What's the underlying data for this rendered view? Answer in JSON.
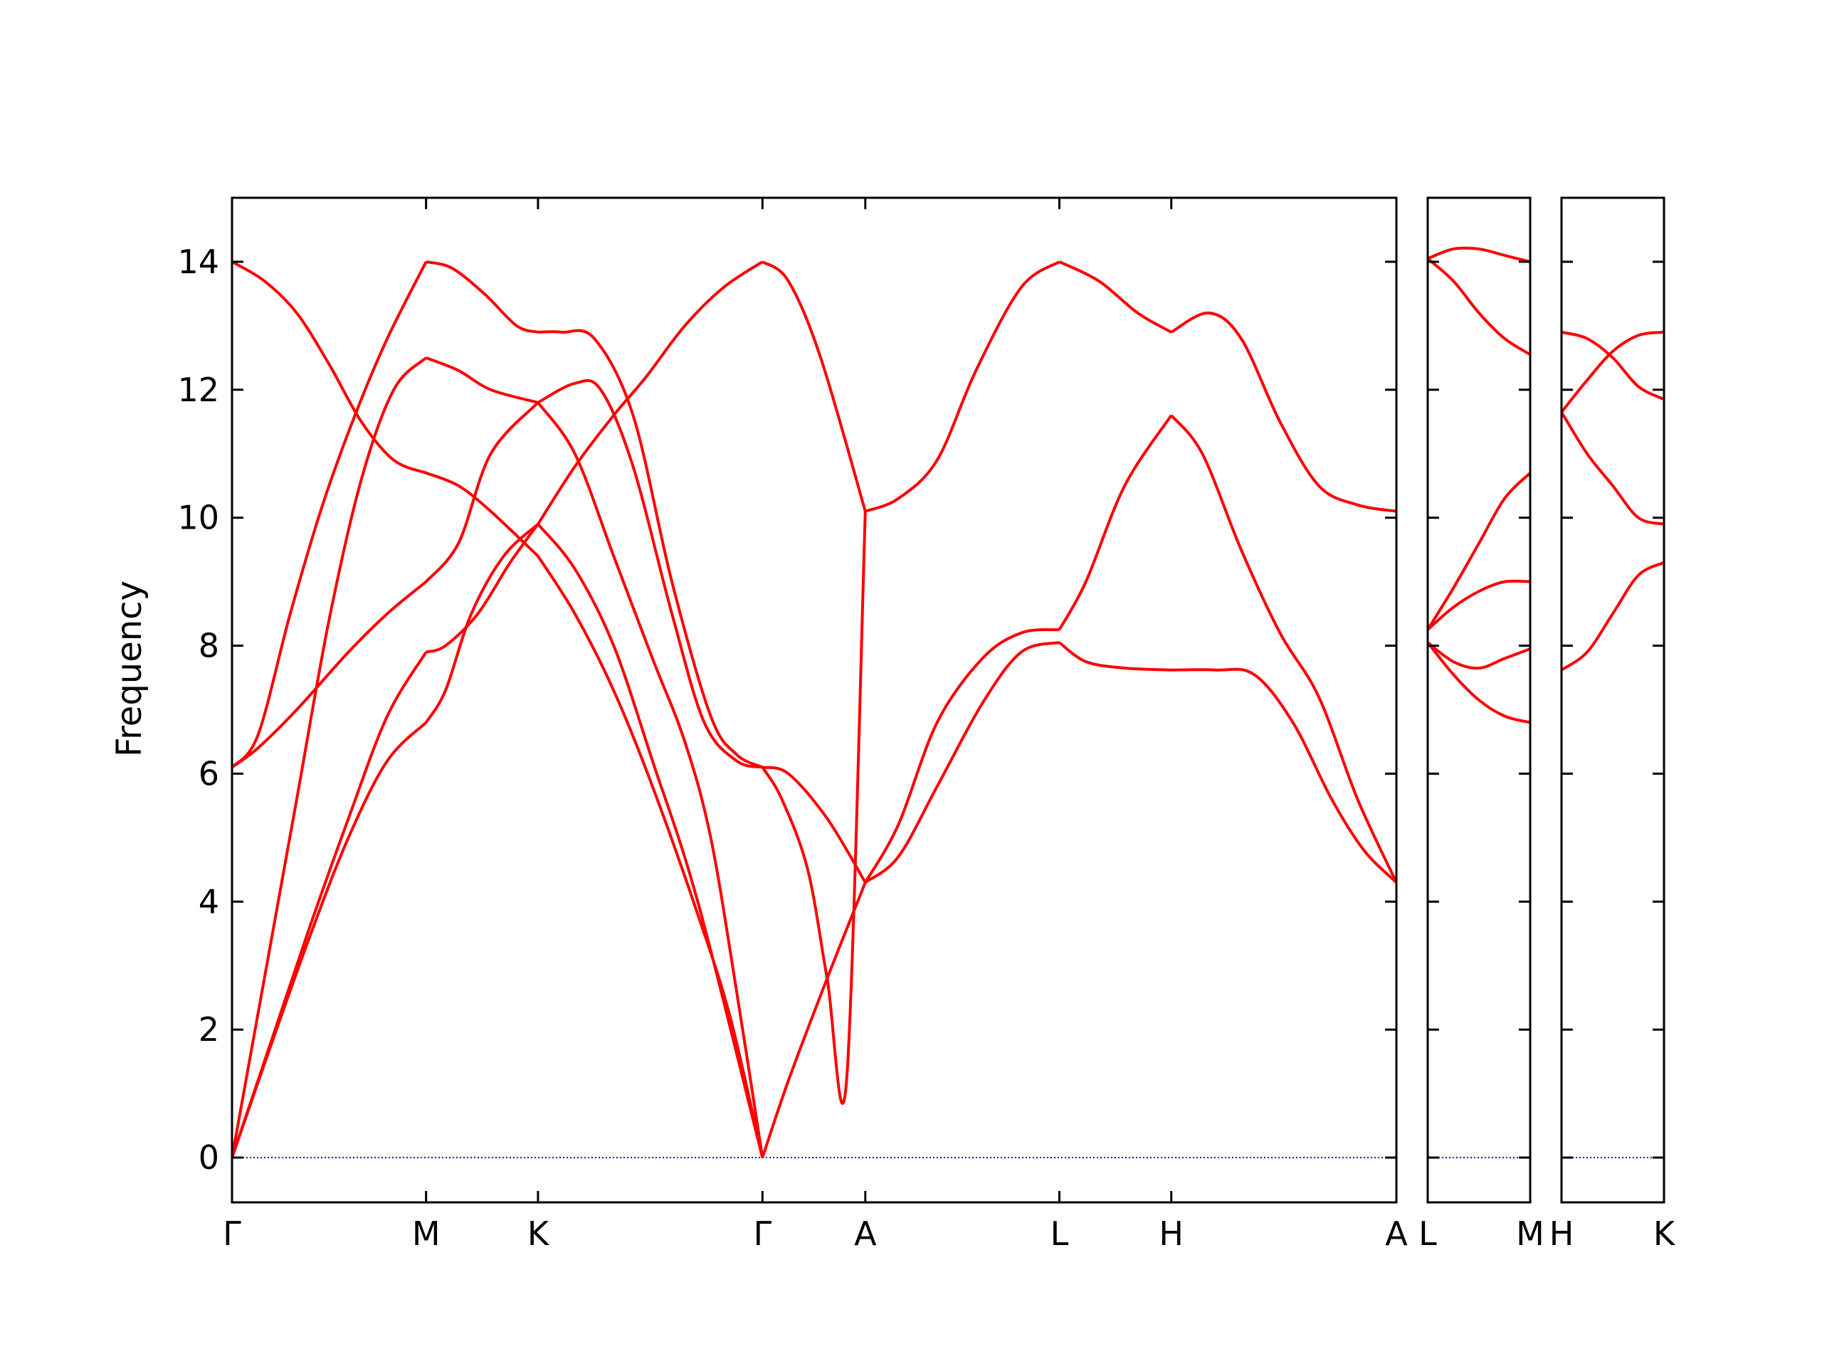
{
  "chart_data": {
    "type": "line",
    "title": "",
    "xlabel": "",
    "ylabel": "Frequency",
    "ylim": [
      -0.7,
      15.0
    ],
    "y_ticks": [
      0,
      2,
      4,
      6,
      8,
      10,
      12,
      14
    ],
    "grid": false,
    "colors": {
      "bands": "#ff0000",
      "zero_line": "#0000ff",
      "frame": "#000000"
    },
    "panels": [
      {
        "id": "main",
        "path": [
          "Γ",
          "M",
          "K",
          "Γ",
          "A",
          "L",
          "H",
          "A"
        ],
        "xrange": [
          0,
          18
        ],
        "ticks": [
          {
            "x": 0,
            "label": "Γ"
          },
          {
            "x": 3,
            "label": "M"
          },
          {
            "x": 4.73,
            "label": "K"
          },
          {
            "x": 8.2,
            "label": "Γ"
          },
          {
            "x": 9.79,
            "label": "A"
          },
          {
            "x": 12.79,
            "label": "L"
          },
          {
            "x": 14.52,
            "label": "H"
          },
          {
            "x": 18,
            "label": "A"
          }
        ],
        "bands": [
          [
            [
              0,
              0
            ],
            [
              0.6,
              1.75
            ],
            [
              1.2,
              3.45
            ],
            [
              1.8,
              5.0
            ],
            [
              2.4,
              6.2
            ],
            [
              3,
              6.8
            ],
            [
              3.3,
              7.3
            ],
            [
              3.7,
              8.5
            ],
            [
              4.2,
              9.4
            ],
            [
              4.73,
              9.9
            ],
            [
              5.3,
              9.2
            ],
            [
              5.9,
              8.0
            ],
            [
              6.5,
              6.2
            ],
            [
              7.2,
              4.0
            ],
            [
              8.2,
              0
            ]
          ],
          [
            [
              0,
              0
            ],
            [
              0.6,
              1.8
            ],
            [
              1.2,
              3.6
            ],
            [
              1.8,
              5.3
            ],
            [
              2.4,
              6.9
            ],
            [
              3,
              7.9
            ],
            [
              3.3,
              8.0
            ],
            [
              3.8,
              8.5
            ],
            [
              4.3,
              9.3
            ],
            [
              4.73,
              9.9
            ],
            [
              5.3,
              10.8
            ],
            [
              5.9,
              11.6
            ],
            [
              6.4,
              12.2
            ],
            [
              7,
              13.0
            ],
            [
              7.6,
              13.6
            ],
            [
              8.2,
              14.0
            ],
            [
              8.6,
              13.7
            ],
            [
              9.1,
              12.5
            ],
            [
              9.79,
              10.1
            ],
            [
              10.3,
              10.3
            ],
            [
              10.9,
              10.9
            ],
            [
              11.5,
              12.3
            ],
            [
              12.2,
              13.6
            ],
            [
              12.79,
              14.0
            ],
            [
              13.4,
              13.7
            ],
            [
              14.0,
              13.2
            ],
            [
              14.52,
              12.9
            ],
            [
              15.1,
              13.2
            ],
            [
              15.6,
              12.8
            ],
            [
              16.2,
              11.5
            ],
            [
              16.8,
              10.5
            ],
            [
              17.4,
              10.2
            ],
            [
              18,
              10.1
            ]
          ],
          [
            [
              0,
              0
            ],
            [
              0.5,
              2.8
            ],
            [
              1.0,
              5.6
            ],
            [
              1.5,
              8.4
            ],
            [
              2.0,
              10.6
            ],
            [
              2.5,
              12.0
            ],
            [
              3,
              12.5
            ],
            [
              3.5,
              12.3
            ],
            [
              4.0,
              12.0
            ],
            [
              4.73,
              11.8
            ],
            [
              5.3,
              12.1
            ],
            [
              5.7,
              12.0
            ],
            [
              6.2,
              10.8
            ],
            [
              6.8,
              8.5
            ],
            [
              7.3,
              6.8
            ],
            [
              7.8,
              6.2
            ],
            [
              8.2,
              6.1
            ],
            [
              8.6,
              6.0
            ],
            [
              9.2,
              5.3
            ],
            [
              9.79,
              4.3
            ],
            [
              10.3,
              5.2
            ],
            [
              10.9,
              6.8
            ],
            [
              11.6,
              7.8
            ],
            [
              12.2,
              8.2
            ],
            [
              12.79,
              8.25
            ],
            [
              13.2,
              9.0
            ],
            [
              13.8,
              10.5
            ],
            [
              14.52,
              11.6
            ],
            [
              15.0,
              11.0
            ],
            [
              15.6,
              9.5
            ],
            [
              16.2,
              8.2
            ],
            [
              16.8,
              7.2
            ],
            [
              17.4,
              5.6
            ],
            [
              18,
              4.3
            ]
          ],
          [
            [
              0,
              6.1
            ],
            [
              0.4,
              6.4
            ],
            [
              1.0,
              7.0
            ],
            [
              1.8,
              7.9
            ],
            [
              2.4,
              8.5
            ],
            [
              3,
              9.0
            ],
            [
              3.5,
              9.6
            ],
            [
              4.0,
              11.0
            ],
            [
              4.73,
              11.8
            ],
            [
              5.3,
              11.0
            ],
            [
              5.9,
              9.4
            ],
            [
              6.5,
              7.8
            ],
            [
              7.0,
              6.5
            ],
            [
              7.4,
              5.0
            ],
            [
              7.8,
              2.6
            ],
            [
              8.2,
              0
            ],
            [
              8.6,
              1.2
            ],
            [
              9.2,
              2.8
            ],
            [
              9.79,
              4.3
            ],
            [
              10.3,
              4.7
            ],
            [
              10.9,
              5.8
            ],
            [
              11.6,
              7.1
            ],
            [
              12.2,
              7.9
            ],
            [
              12.79,
              8.05
            ],
            [
              13.2,
              7.75
            ],
            [
              13.8,
              7.65
            ],
            [
              14.52,
              7.62
            ],
            [
              15.2,
              7.62
            ],
            [
              15.8,
              7.55
            ],
            [
              16.4,
              6.8
            ],
            [
              17.0,
              5.6
            ],
            [
              17.5,
              4.8
            ],
            [
              18,
              4.3
            ]
          ],
          [
            [
              0,
              6.1
            ],
            [
              0.4,
              6.6
            ],
            [
              0.9,
              8.5
            ],
            [
              1.4,
              10.2
            ],
            [
              1.9,
              11.6
            ],
            [
              2.4,
              12.8
            ],
            [
              3,
              14.0
            ],
            [
              3.4,
              13.9
            ],
            [
              3.9,
              13.5
            ],
            [
              4.4,
              13.0
            ],
            [
              4.73,
              12.9
            ],
            [
              5.1,
              12.9
            ],
            [
              5.6,
              12.8
            ],
            [
              6.2,
              11.6
            ],
            [
              6.8,
              9.0
            ],
            [
              7.4,
              6.9
            ],
            [
              7.8,
              6.3
            ],
            [
              8.2,
              6.1
            ],
            [
              8.5,
              5.6
            ],
            [
              8.9,
              4.5
            ],
            [
              9.2,
              2.8
            ],
            [
              9.5,
              1.2
            ],
            [
              9.79,
              10.1
            ]
          ],
          [
            [
              0,
              14.0
            ],
            [
              0.5,
              13.7
            ],
            [
              1.0,
              13.2
            ],
            [
              1.5,
              12.4
            ],
            [
              2.0,
              11.5
            ],
            [
              2.5,
              10.9
            ],
            [
              3,
              10.7
            ],
            [
              3.5,
              10.5
            ],
            [
              4.0,
              10.1
            ],
            [
              4.73,
              9.4
            ],
            [
              5.3,
              8.5
            ],
            [
              5.9,
              7.3
            ],
            [
              6.5,
              5.8
            ],
            [
              7.2,
              3.8
            ],
            [
              7.7,
              2.2
            ],
            [
              8.2,
              0
            ]
          ]
        ]
      },
      {
        "id": "L-M",
        "path": [
          "L",
          "M"
        ],
        "xrange": [
          0,
          1
        ],
        "ticks": [
          {
            "x": 0,
            "label": "L"
          },
          {
            "x": 1,
            "label": "M"
          }
        ],
        "bands": [
          [
            [
              0,
              14.05
            ],
            [
              0.25,
              14.2
            ],
            [
              0.5,
              14.2
            ],
            [
              0.75,
              14.1
            ],
            [
              1,
              14.0
            ]
          ],
          [
            [
              0,
              14.05
            ],
            [
              0.25,
              13.7
            ],
            [
              0.5,
              13.2
            ],
            [
              0.75,
              12.8
            ],
            [
              1,
              12.55
            ]
          ],
          [
            [
              0,
              8.25
            ],
            [
              0.25,
              8.9
            ],
            [
              0.5,
              9.6
            ],
            [
              0.75,
              10.3
            ],
            [
              1,
              10.7
            ]
          ],
          [
            [
              0,
              8.25
            ],
            [
              0.25,
              8.6
            ],
            [
              0.5,
              8.85
            ],
            [
              0.75,
              9.0
            ],
            [
              1,
              9.0
            ]
          ],
          [
            [
              0,
              8.05
            ],
            [
              0.25,
              7.75
            ],
            [
              0.5,
              7.65
            ],
            [
              0.75,
              7.8
            ],
            [
              1,
              7.95
            ]
          ],
          [
            [
              0,
              8.05
            ],
            [
              0.25,
              7.55
            ],
            [
              0.5,
              7.15
            ],
            [
              0.75,
              6.9
            ],
            [
              1,
              6.8
            ]
          ]
        ]
      },
      {
        "id": "H-K",
        "path": [
          "H",
          "K"
        ],
        "xrange": [
          0,
          1
        ],
        "ticks": [
          {
            "x": 0,
            "label": "H"
          },
          {
            "x": 1,
            "label": "K"
          }
        ],
        "bands": [
          [
            [
              0,
              12.9
            ],
            [
              0.25,
              12.8
            ],
            [
              0.5,
              12.5
            ],
            [
              0.75,
              12.05
            ],
            [
              1,
              11.85
            ]
          ],
          [
            [
              0,
              11.65
            ],
            [
              0.25,
              12.15
            ],
            [
              0.5,
              12.6
            ],
            [
              0.75,
              12.85
            ],
            [
              1,
              12.9
            ]
          ],
          [
            [
              0,
              11.65
            ],
            [
              0.25,
              11.0
            ],
            [
              0.5,
              10.5
            ],
            [
              0.75,
              10.0
            ],
            [
              1,
              9.9
            ]
          ],
          [
            [
              0,
              7.62
            ],
            [
              0.25,
              7.9
            ],
            [
              0.5,
              8.5
            ],
            [
              0.75,
              9.1
            ],
            [
              1,
              9.3
            ]
          ]
        ]
      }
    ]
  }
}
